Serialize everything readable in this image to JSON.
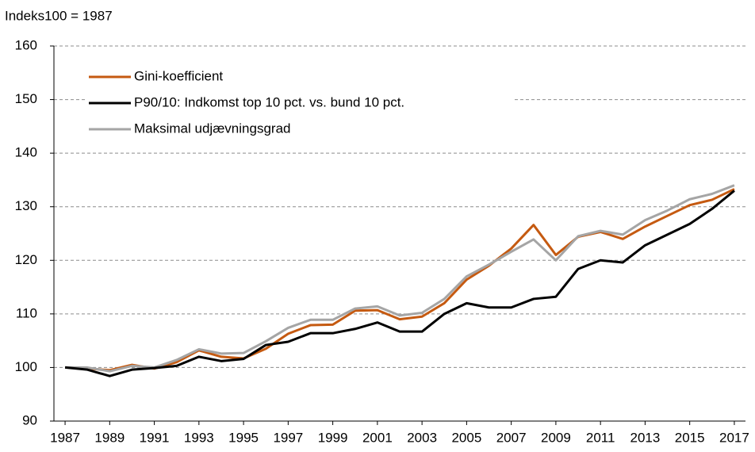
{
  "chart_data": {
    "type": "line",
    "y_axis_label": "Indeks100 = 1987",
    "x": [
      1987,
      1988,
      1989,
      1990,
      1991,
      1992,
      1993,
      1994,
      1995,
      1996,
      1997,
      1998,
      1999,
      2000,
      2001,
      2002,
      2003,
      2004,
      2005,
      2006,
      2007,
      2008,
      2009,
      2010,
      2011,
      2012,
      2013,
      2014,
      2015,
      2016,
      2017
    ],
    "xlim": [
      1986.5,
      2017.5
    ],
    "xticks": [
      1987,
      1989,
      1991,
      1993,
      1995,
      1997,
      1999,
      2001,
      2003,
      2005,
      2007,
      2009,
      2011,
      2013,
      2015,
      2017
    ],
    "ylim": [
      90,
      160
    ],
    "yticks": [
      90,
      100,
      110,
      120,
      130,
      140,
      150,
      160
    ],
    "grid": true,
    "legend": "upper left",
    "series": [
      {
        "name": "Gini-koefficient",
        "color": "#c55a11",
        "values": [
          100,
          99.8,
          99.5,
          100.5,
          99.8,
          101,
          103.2,
          102,
          101.7,
          103.5,
          106.3,
          107.9,
          108,
          110.6,
          110.7,
          109,
          109.5,
          112,
          116.4,
          119,
          122.2,
          126.6,
          121,
          124.4,
          125.3,
          124,
          126.3,
          128.3,
          130.3,
          131.3,
          133.3
        ]
      },
      {
        "name": "P90/10: Indkomst top 10 pct. vs. bund 10 pct.",
        "color": "#000000",
        "values": [
          100,
          99.6,
          98.4,
          99.6,
          99.9,
          100.3,
          102,
          101.2,
          101.6,
          104.2,
          104.8,
          106.4,
          106.4,
          107.2,
          108.4,
          106.7,
          106.7,
          110,
          112,
          111.2,
          111.2,
          112.8,
          113.2,
          118.4,
          120,
          119.6,
          122.8,
          124.8,
          126.8,
          129.6,
          133
        ]
      },
      {
        "name": "Maksimal udjævningsgrad",
        "color": "#a5a5a5",
        "values": [
          100,
          100,
          99.3,
          100.3,
          100,
          101.4,
          103.4,
          102.6,
          102.7,
          104.9,
          107.4,
          108.9,
          108.9,
          111,
          111.4,
          109.7,
          110.2,
          112.8,
          117,
          119.2,
          121.6,
          123.9,
          120,
          124.5,
          125.5,
          124.8,
          127.5,
          129.3,
          131.4,
          132.4,
          134
        ]
      }
    ]
  }
}
